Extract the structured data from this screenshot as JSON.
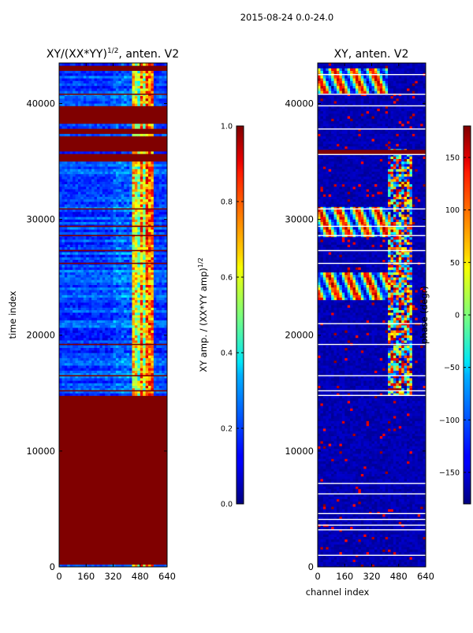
{
  "figure": {
    "suptitle": "2015-08-24 0.0-24.0",
    "xlabel": "channel index",
    "ylabel": "time index"
  },
  "colors": {
    "jet_low": "#00007f",
    "jet_high": "#7f0000",
    "axis": "#000000",
    "white": "#ffffff"
  },
  "chart_data": [
    {
      "type": "heatmap",
      "id": "amplitude",
      "title_main": "XY/(XX*YY)",
      "title_sup": "1/2",
      "title_tail": ", anten. V2",
      "xlabel": "",
      "ylabel": "time index",
      "xlim": [
        0,
        640
      ],
      "ylim": [
        0,
        43500
      ],
      "xticks": [
        0,
        160,
        320,
        480,
        640
      ],
      "yticks": [
        0,
        10000,
        20000,
        30000,
        40000
      ],
      "colorbar": {
        "label_main": "XY amp. / (XX*YY amp)",
        "label_sup": "1/2",
        "vmin": 0.0,
        "vmax": 1.0,
        "ticks": [
          "0.0",
          "0.2",
          "0.4",
          "0.6",
          "0.8",
          "1.0"
        ]
      },
      "saturated_bands": [
        [
          300,
          14300
        ],
        [
          14400,
          14700
        ],
        [
          35100,
          35600
        ],
        [
          35900,
          37200
        ],
        [
          37400,
          37800
        ],
        [
          38300,
          39700
        ],
        [
          42900,
          43300
        ]
      ],
      "high_activity_channels": [
        [
          440,
          560
        ]
      ],
      "flagged_lines": [
        1000,
        3200,
        3600,
        4100,
        4600,
        6300,
        7200,
        15200,
        16500,
        19200,
        26200,
        27300,
        28600,
        29400,
        30900,
        40800
      ]
    },
    {
      "type": "heatmap",
      "id": "phase",
      "title_main": "XY, anten. V2",
      "xlabel": "channel index",
      "ylabel": "",
      "xlim": [
        0,
        640
      ],
      "ylim": [
        0,
        43500
      ],
      "xticks": [
        0,
        160,
        320,
        480,
        640
      ],
      "yticks": [
        0,
        10000,
        20000,
        30000,
        40000
      ],
      "colorbar": {
        "label_main": "phase (degr)",
        "vmin": -180,
        "vmax": 180,
        "ticks": [
          "-150",
          "-100",
          "-50",
          "0",
          "50",
          "100",
          "150"
        ]
      },
      "phase_events": [
        [
          23000,
          25500
        ],
        [
          28500,
          31000
        ],
        [
          40800,
          43000
        ]
      ],
      "flagged_lines": [
        1000,
        3200,
        3600,
        4100,
        4600,
        6300,
        7200,
        14800,
        15200,
        16500,
        19200,
        21000,
        26200,
        27300,
        28600,
        29400,
        30900,
        35600,
        37800,
        39800,
        40800,
        42500
      ]
    }
  ]
}
